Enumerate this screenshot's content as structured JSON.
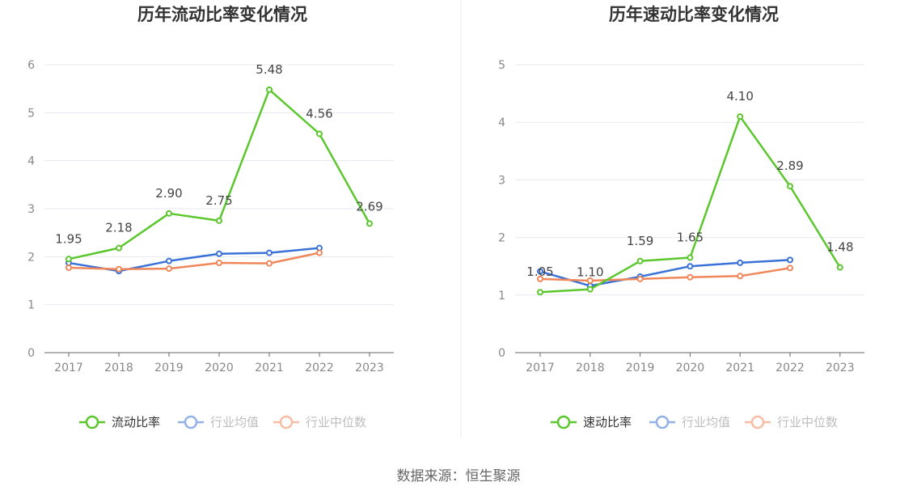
{
  "source_text": "数据来源：恒生聚源",
  "chart_data": [
    {
      "type": "line",
      "title": "历年流动比率变化情况",
      "categories": [
        "2017",
        "2018",
        "2019",
        "2020",
        "2021",
        "2022",
        "2023"
      ],
      "ylim": [
        0,
        6
      ],
      "yticks": [
        0,
        1,
        2,
        3,
        4,
        5,
        6
      ],
      "grid": true,
      "legend_position": "bottom",
      "series": [
        {
          "name": "流动比率",
          "color": "#5bc72d",
          "values": [
            1.95,
            2.18,
            2.9,
            2.75,
            5.48,
            4.56,
            2.69
          ],
          "show_labels": true
        },
        {
          "name": "行业均值",
          "color": "#3a72d8",
          "values": [
            1.87,
            1.7,
            1.91,
            2.06,
            2.08,
            2.18,
            null
          ],
          "show_labels": false
        },
        {
          "name": "行业中位数",
          "color": "#f0875a",
          "values": [
            1.77,
            1.74,
            1.75,
            1.87,
            1.86,
            2.08,
            null
          ],
          "show_labels": false
        }
      ],
      "data_labels": [
        "1.95",
        "2.18",
        "2.90",
        "2.75",
        "5.48",
        "4.56",
        "2.69"
      ]
    },
    {
      "type": "line",
      "title": "历年速动比率变化情况",
      "categories": [
        "2017",
        "2018",
        "2019",
        "2020",
        "2021",
        "2022",
        "2023"
      ],
      "ylim": [
        0,
        5
      ],
      "yticks": [
        0,
        1,
        2,
        3,
        4,
        5
      ],
      "grid": true,
      "legend_position": "bottom",
      "series": [
        {
          "name": "速动比率",
          "color": "#5bc72d",
          "values": [
            1.05,
            1.1,
            1.59,
            1.65,
            4.1,
            2.89,
            1.48
          ],
          "show_labels": true
        },
        {
          "name": "行业均值",
          "color": "#3a72d8",
          "values": [
            1.41,
            1.16,
            1.32,
            1.5,
            1.56,
            1.61,
            null
          ],
          "show_labels": false
        },
        {
          "name": "行业中位数",
          "color": "#f0875a",
          "values": [
            1.28,
            1.25,
            1.28,
            1.31,
            1.33,
            1.47,
            null
          ],
          "show_labels": false
        }
      ],
      "data_labels": [
        "1.05",
        "1.10",
        "1.59",
        "1.65",
        "4.10",
        "2.89",
        "1.48"
      ]
    }
  ]
}
